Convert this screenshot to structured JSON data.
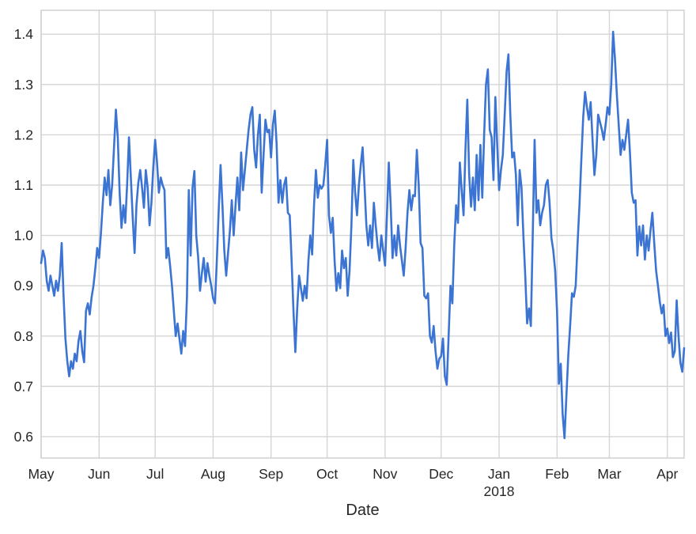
{
  "chart_data": {
    "type": "line",
    "title": "",
    "xlabel": "Date",
    "ylabel": "",
    "x_unit": "day",
    "x_start": "2017-05-01",
    "x_end": "2018-04-10",
    "grid": true,
    "legend_position": "none",
    "ylim": [
      0.5575,
      1.4475
    ],
    "y_ticks": [
      "0.6",
      "0.7",
      "0.8",
      "0.9",
      "1.0",
      "1.1",
      "1.2",
      "1.3",
      "1.4"
    ],
    "y_tick_values": [
      0.6,
      0.7,
      0.8,
      0.9,
      1.0,
      1.1,
      1.2,
      1.3,
      1.4
    ],
    "x_ticks": [
      {
        "label": "May",
        "day": 0
      },
      {
        "label": "Jun",
        "day": 31
      },
      {
        "label": "Jul",
        "day": 61
      },
      {
        "label": "Aug",
        "day": 92
      },
      {
        "label": "Sep",
        "day": 123
      },
      {
        "label": "Oct",
        "day": 153
      },
      {
        "label": "Nov",
        "day": 184
      },
      {
        "label": "Dec",
        "day": 214
      },
      {
        "label": "Jan",
        "day": 245,
        "year": "2018"
      },
      {
        "label": "Feb",
        "day": 276
      },
      {
        "label": "Mar",
        "day": 304
      },
      {
        "label": "Apr",
        "day": 335
      }
    ],
    "colors": {
      "line": "#3b74d3",
      "grid": "#d5d5d5",
      "spine": "#d0d0d0",
      "tick_label": "#262626",
      "background": "#ffffff"
    },
    "series_name": "value",
    "x_days_total": 344,
    "values": [
      0.945,
      0.97,
      0.955,
      0.91,
      0.89,
      0.92,
      0.9,
      0.88,
      0.91,
      0.89,
      0.92,
      0.985,
      0.88,
      0.795,
      0.75,
      0.72,
      0.75,
      0.735,
      0.765,
      0.75,
      0.79,
      0.81,
      0.77,
      0.748,
      0.85,
      0.865,
      0.843,
      0.877,
      0.9,
      0.935,
      0.975,
      0.955,
      1.005,
      1.065,
      1.115,
      1.08,
      1.13,
      1.06,
      1.1,
      1.175,
      1.25,
      1.195,
      1.085,
      1.015,
      1.06,
      1.025,
      1.1,
      1.195,
      1.115,
      1.035,
      0.965,
      1.06,
      1.105,
      1.13,
      1.095,
      1.055,
      1.13,
      1.095,
      1.02,
      1.065,
      1.135,
      1.19,
      1.145,
      1.085,
      1.115,
      1.1,
      1.09,
      0.955,
      0.975,
      0.94,
      0.9,
      0.85,
      0.8,
      0.825,
      0.795,
      0.765,
      0.81,
      0.78,
      0.875,
      1.09,
      0.96,
      1.095,
      1.128,
      1.0,
      0.957,
      0.89,
      0.925,
      0.955,
      0.908,
      0.945,
      0.92,
      0.9,
      0.875,
      0.865,
      0.95,
      1.05,
      1.14,
      1.06,
      0.97,
      0.92,
      0.965,
      1.01,
      1.07,
      1.0,
      1.06,
      1.115,
      1.05,
      1.165,
      1.09,
      1.13,
      1.17,
      1.21,
      1.24,
      1.255,
      1.17,
      1.135,
      1.2,
      1.24,
      1.085,
      1.16,
      1.23,
      1.205,
      1.21,
      1.155,
      1.22,
      1.248,
      1.18,
      1.065,
      1.11,
      1.065,
      1.1,
      1.115,
      1.045,
      1.04,
      0.95,
      0.85,
      0.768,
      0.855,
      0.92,
      0.895,
      0.87,
      0.9,
      0.875,
      0.95,
      1.0,
      0.962,
      1.06,
      1.13,
      1.075,
      1.1,
      1.093,
      1.1,
      1.14,
      1.19,
      1.04,
      1.005,
      1.035,
      0.95,
      0.89,
      0.925,
      0.895,
      0.97,
      0.935,
      0.955,
      0.88,
      0.93,
      1.02,
      1.15,
      1.085,
      1.04,
      1.1,
      1.14,
      1.175,
      1.1,
      1.02,
      0.98,
      1.02,
      0.975,
      1.065,
      1.02,
      0.98,
      0.95,
      1.0,
      0.97,
      0.94,
      1.04,
      1.145,
      1.06,
      0.955,
      1.0,
      0.96,
      1.02,
      0.98,
      0.95,
      0.92,
      0.975,
      1.045,
      1.09,
      1.05,
      1.08,
      1.078,
      1.17,
      1.1,
      0.985,
      0.975,
      0.88,
      0.875,
      0.885,
      0.8,
      0.787,
      0.82,
      0.77,
      0.735,
      0.755,
      0.76,
      0.795,
      0.72,
      0.703,
      0.8,
      0.9,
      0.865,
      0.98,
      1.06,
      1.025,
      1.145,
      1.09,
      1.04,
      1.17,
      1.27,
      1.12,
      1.057,
      1.115,
      1.05,
      1.16,
      1.07,
      1.18,
      1.075,
      1.2,
      1.3,
      1.33,
      1.21,
      1.195,
      1.11,
      1.275,
      1.18,
      1.09,
      1.13,
      1.16,
      1.24,
      1.325,
      1.36,
      1.24,
      1.155,
      1.165,
      1.12,
      1.02,
      1.13,
      1.095,
      1.0,
      0.92,
      0.825,
      0.855,
      0.82,
      1.0,
      1.19,
      1.045,
      1.07,
      1.02,
      1.045,
      1.06,
      1.1,
      1.11,
      1.065,
      0.995,
      0.97,
      0.93,
      0.85,
      0.705,
      0.745,
      0.645,
      0.597,
      0.68,
      0.76,
      0.82,
      0.885,
      0.878,
      0.9,
      0.985,
      1.06,
      1.15,
      1.235,
      1.285,
      1.255,
      1.23,
      1.265,
      1.19,
      1.12,
      1.16,
      1.24,
      1.225,
      1.21,
      1.19,
      1.22,
      1.255,
      1.24,
      1.3,
      1.405,
      1.35,
      1.28,
      1.22,
      1.16,
      1.19,
      1.17,
      1.2,
      1.23,
      1.165,
      1.085,
      1.065,
      1.07,
      0.96,
      1.018,
      0.98,
      1.02,
      0.952,
      1.0,
      0.97,
      1.01,
      1.045,
      0.985,
      0.93,
      0.9,
      0.868,
      0.845,
      0.862,
      0.8,
      0.815,
      0.786,
      0.807,
      0.758,
      0.77,
      0.871,
      0.8,
      0.747,
      0.729,
      0.776
    ]
  }
}
